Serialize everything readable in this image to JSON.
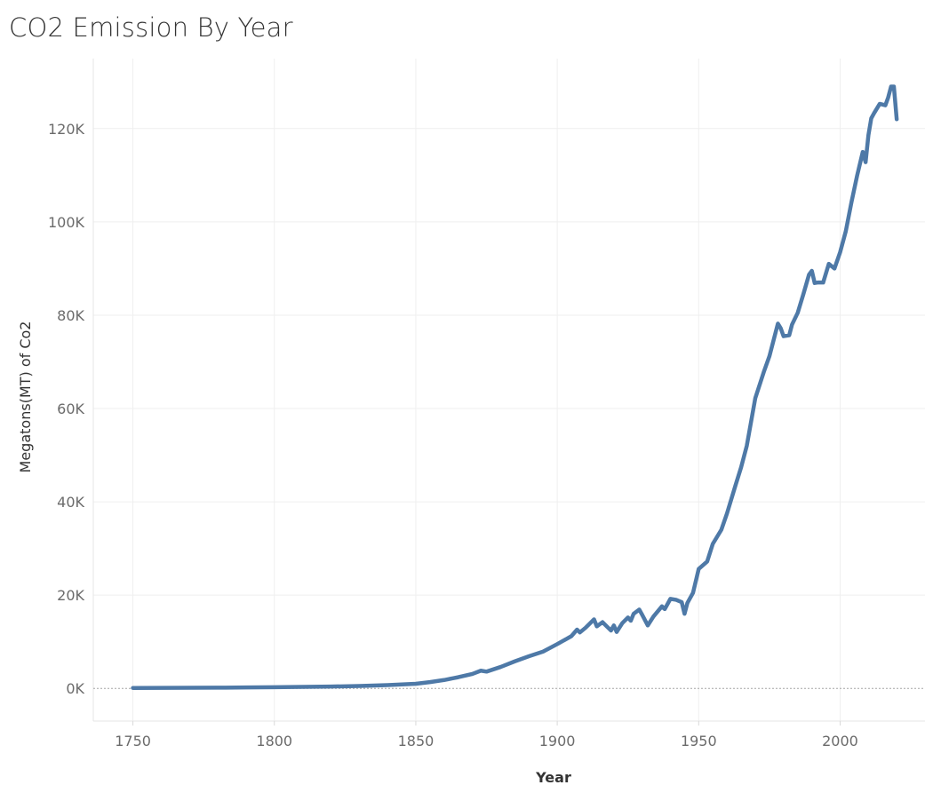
{
  "chart_data": {
    "type": "line",
    "title": "CO2 Emission By Year",
    "xlabel": "Year",
    "ylabel": "Megatons(MT) of Co2",
    "xlim": [
      1736,
      2030
    ],
    "ylim": [
      -7000,
      135000
    ],
    "x_ticks": [
      1750,
      1800,
      1850,
      1900,
      1950,
      2000
    ],
    "x_tick_labels": [
      "1750",
      "1800",
      "1850",
      "1900",
      "1950",
      "2000"
    ],
    "y_ticks": [
      0,
      20000,
      40000,
      60000,
      80000,
      100000,
      120000
    ],
    "y_tick_labels": [
      "0K",
      "20K",
      "40K",
      "60K",
      "80K",
      "100K",
      "120K"
    ],
    "grid": true,
    "line_color": "#4e79a7",
    "series": [
      {
        "x": [
          1750,
          1760,
          1770,
          1780,
          1790,
          1800,
          1810,
          1820,
          1830,
          1840,
          1850,
          1855,
          1860,
          1865,
          1870,
          1873,
          1875,
          1880,
          1885,
          1890,
          1895,
          1900,
          1905,
          1907,
          1908,
          1910,
          1913,
          1914,
          1916,
          1918,
          1919,
          1920,
          1921,
          1923,
          1925,
          1926,
          1927,
          1929,
          1930,
          1932,
          1934,
          1937,
          1938,
          1940,
          1942,
          1944,
          1945,
          1946,
          1948,
          1950,
          1953,
          1955,
          1958,
          1960,
          1963,
          1965,
          1967,
          1970,
          1973,
          1975,
          1978,
          1979,
          1980,
          1982,
          1983,
          1985,
          1987,
          1989,
          1990,
          1991,
          1992,
          1994,
          1996,
          1998,
          2000,
          2002,
          2004,
          2006,
          2008,
          2009,
          2010,
          2011,
          2012,
          2014,
          2016,
          2017,
          2018,
          2019,
          2020
        ],
        "y": [
          100,
          110,
          130,
          160,
          200,
          260,
          320,
          400,
          520,
          720,
          1000,
          1350,
          1800,
          2400,
          3100,
          3800,
          3600,
          4600,
          5800,
          6900,
          7900,
          9500,
          11200,
          12600,
          12000,
          13000,
          14800,
          13300,
          14200,
          13000,
          12400,
          13500,
          12100,
          14000,
          15200,
          14500,
          16000,
          16900,
          15800,
          13500,
          15400,
          17600,
          17000,
          19200,
          19000,
          18500,
          16000,
          18300,
          20500,
          25600,
          27200,
          31000,
          34000,
          37500,
          43500,
          47400,
          52000,
          62200,
          67800,
          71200,
          78200,
          77200,
          75500,
          75700,
          78000,
          80500,
          84500,
          88700,
          89500,
          86900,
          87000,
          87000,
          91000,
          90000,
          93500,
          98000,
          104200,
          109900,
          115000,
          112800,
          118600,
          122200,
          123300,
          125300,
          125000,
          126700,
          129000,
          129000,
          122000
        ]
      }
    ]
  }
}
